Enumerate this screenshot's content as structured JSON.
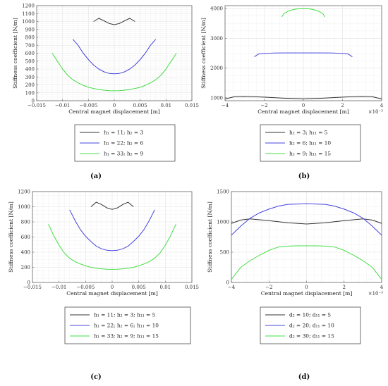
{
  "chart_data": [
    {
      "type": "line",
      "panel_label": "(a)",
      "xlabel": "Central magnet displacement [m]",
      "ylabel": "Stiffness coefficient [N/m]",
      "xlim": [
        -0.015,
        0.015
      ],
      "ylim": [
        0,
        1200
      ],
      "xticks": [
        -0.015,
        -0.01,
        -0.005,
        0,
        0.005,
        0.01,
        0.015
      ],
      "xtick_labels": [
        "−0.015",
        "−0.01",
        "−0.005",
        "0",
        "0.005",
        "0.01",
        "0.015"
      ],
      "yticks": [
        0,
        100,
        200,
        300,
        400,
        500,
        600,
        700,
        800,
        900,
        1000,
        1100,
        1200
      ],
      "xexp": "",
      "grid": true,
      "legend_position": "below",
      "series": [
        {
          "name": "h₁ = 11;  h₂ = 3",
          "color": "#333333",
          "x": [
            -0.004,
            -0.003,
            -0.002,
            -0.001,
            0,
            0.001,
            0.002,
            0.003,
            0.004
          ],
          "y": [
            1000,
            1040,
            1010,
            975,
            960,
            975,
            1010,
            1040,
            1000
          ]
        },
        {
          "name": "h₁ = 22;  h₂ = 6",
          "color": "#4444dd",
          "x": [
            -0.008,
            -0.007,
            -0.006,
            -0.005,
            -0.004,
            -0.003,
            -0.002,
            -0.001,
            0,
            0.001,
            0.002,
            0.003,
            0.004,
            0.005,
            0.006,
            0.007,
            0.008
          ],
          "y": [
            775,
            700,
            600,
            520,
            450,
            400,
            365,
            345,
            340,
            345,
            365,
            400,
            450,
            520,
            600,
            700,
            775
          ]
        },
        {
          "name": "h₁ = 33;  h₂ = 9",
          "color": "#44dd44",
          "x": [
            -0.012,
            -0.011,
            -0.01,
            -0.009,
            -0.008,
            -0.007,
            -0.006,
            -0.005,
            -0.004,
            -0.003,
            -0.002,
            -0.001,
            0,
            0.001,
            0.002,
            0.003,
            0.004,
            0.005,
            0.006,
            0.007,
            0.008,
            0.009,
            0.01,
            0.011,
            0.012
          ],
          "y": [
            600,
            500,
            400,
            320,
            265,
            225,
            195,
            170,
            155,
            142,
            133,
            127,
            125,
            127,
            133,
            142,
            155,
            170,
            195,
            225,
            265,
            320,
            400,
            500,
            600
          ]
        }
      ]
    },
    {
      "type": "line",
      "panel_label": "(b)",
      "xlabel": "Central magnet displacement [m]",
      "ylabel": "Stiffness coefficient [N/m]",
      "xlim": [
        -4,
        4
      ],
      "ylim": [
        900,
        4100
      ],
      "xticks": [
        -4,
        -2,
        0,
        2,
        4
      ],
      "xtick_labels": [
        "−4",
        "−2",
        "0",
        "2",
        "4"
      ],
      "yticks": [
        1000,
        2000,
        3000,
        4000
      ],
      "xexp": "×10⁻³",
      "grid": true,
      "legend_position": "below",
      "series": [
        {
          "name": "h₂ = 3;  h₁₁ = 5",
          "color": "#333333",
          "x": [
            -4,
            -3.5,
            -3,
            -2,
            -1,
            0,
            1,
            2,
            3,
            3.5,
            4
          ],
          "y": [
            960,
            1040,
            1050,
            1020,
            985,
            965,
            985,
            1020,
            1050,
            1040,
            960
          ]
        },
        {
          "name": "h₂ = 6;  h₁₁ = 10",
          "color": "#4444dd",
          "x": [
            -2.5,
            -2.3,
            -2,
            -1.5,
            -1,
            0,
            1,
            1.5,
            2,
            2.3,
            2.5
          ],
          "y": [
            2380,
            2470,
            2490,
            2505,
            2510,
            2510,
            2510,
            2505,
            2490,
            2470,
            2380
          ]
        },
        {
          "name": "h₂ = 9;  h₁₁ = 15",
          "color": "#44dd44",
          "x": [
            -1.1,
            -1,
            -0.75,
            -0.5,
            -0.25,
            0,
            0.25,
            0.5,
            0.75,
            1,
            1.1
          ],
          "y": [
            3720,
            3830,
            3920,
            3970,
            3995,
            4000,
            3995,
            3970,
            3920,
            3830,
            3720
          ]
        }
      ]
    },
    {
      "type": "line",
      "panel_label": "(c)",
      "xlabel": "Central magnet displacement [m]",
      "ylabel": "Stiffness coefficient [N/m]",
      "xlim": [
        -0.015,
        0.015
      ],
      "ylim": [
        0,
        1200
      ],
      "xticks": [
        -0.015,
        -0.01,
        -0.005,
        0,
        0.005,
        0.01,
        0.015
      ],
      "xtick_labels": [
        "−0.015",
        "−0.01",
        "−0.005",
        "0",
        "0.005",
        "0.01",
        "0.015"
      ],
      "yticks": [
        0,
        200,
        400,
        600,
        800,
        1000,
        1200
      ],
      "xexp": "",
      "grid": true,
      "legend_position": "below",
      "series": [
        {
          "name": "h₁ = 11;  h₂ = 3;  h₁₁ = 5",
          "color": "#333333",
          "x": [
            -0.004,
            -0.003,
            -0.002,
            -0.001,
            0,
            0.001,
            0.002,
            0.003,
            0.004
          ],
          "y": [
            1000,
            1060,
            1030,
            985,
            965,
            985,
            1030,
            1060,
            1000
          ]
        },
        {
          "name": "h₁ = 22;  h₂ = 6;  h₁₁ = 10",
          "color": "#4444dd",
          "x": [
            -0.008,
            -0.007,
            -0.006,
            -0.005,
            -0.004,
            -0.003,
            -0.002,
            -0.001,
            0,
            0.001,
            0.002,
            0.003,
            0.004,
            0.005,
            0.006,
            0.007,
            0.008
          ],
          "y": [
            960,
            820,
            700,
            610,
            540,
            480,
            445,
            425,
            420,
            425,
            445,
            480,
            540,
            610,
            700,
            820,
            960
          ]
        },
        {
          "name": "h₁ = 33;  h₂ = 9;  h₁₁ = 15",
          "color": "#44dd44",
          "x": [
            -0.012,
            -0.011,
            -0.01,
            -0.009,
            -0.008,
            -0.007,
            -0.006,
            -0.005,
            -0.004,
            -0.003,
            -0.002,
            -0.001,
            0,
            0.001,
            0.002,
            0.003,
            0.004,
            0.005,
            0.006,
            0.007,
            0.008,
            0.009,
            0.01,
            0.011,
            0.012
          ],
          "y": [
            770,
            620,
            490,
            390,
            320,
            275,
            245,
            220,
            200,
            188,
            180,
            175,
            173,
            175,
            180,
            188,
            200,
            220,
            245,
            275,
            320,
            390,
            490,
            620,
            770
          ]
        }
      ]
    },
    {
      "type": "line",
      "panel_label": "(d)",
      "xlabel": "Central magnet displacement [m]",
      "ylabel": "Stiffness coefficient [N/m]",
      "xlim": [
        -4,
        4
      ],
      "ylim": [
        0,
        1500
      ],
      "xticks": [
        -4,
        -2,
        0,
        2,
        4
      ],
      "xtick_labels": [
        "−4",
        "−2",
        "0",
        "2",
        "4"
      ],
      "yticks": [
        0,
        500,
        1000,
        1500
      ],
      "xexp": "×10⁻³",
      "grid": true,
      "legend_position": "below",
      "series": [
        {
          "name": "d₂ = 10;  d₁₁ = 5",
          "color": "#333333",
          "x": [
            -4,
            -3.5,
            -3,
            -2,
            -1,
            0,
            1,
            2,
            3,
            3.5,
            4
          ],
          "y": [
            975,
            1030,
            1050,
            1020,
            985,
            965,
            985,
            1020,
            1050,
            1030,
            975
          ]
        },
        {
          "name": "d₂ = 20;  d₁₁ = 10",
          "color": "#4444dd",
          "x": [
            -4,
            -3.5,
            -3,
            -2.5,
            -2,
            -1.5,
            -1,
            0,
            1,
            1.5,
            2,
            2.5,
            3,
            3.5,
            4
          ],
          "y": [
            780,
            930,
            1060,
            1150,
            1210,
            1260,
            1290,
            1300,
            1290,
            1260,
            1210,
            1150,
            1060,
            930,
            780
          ]
        },
        {
          "name": "d₂ = 30;  d₁₁ = 15",
          "color": "#44dd44",
          "x": [
            -4,
            -3.5,
            -3,
            -2.5,
            -2,
            -1.5,
            -1,
            -0.5,
            0,
            0.5,
            1,
            1.5,
            2,
            2.5,
            3,
            3.5,
            4
          ],
          "y": [
            50,
            250,
            360,
            450,
            530,
            585,
            600,
            605,
            605,
            605,
            600,
            585,
            530,
            450,
            360,
            250,
            50
          ]
        }
      ]
    }
  ]
}
